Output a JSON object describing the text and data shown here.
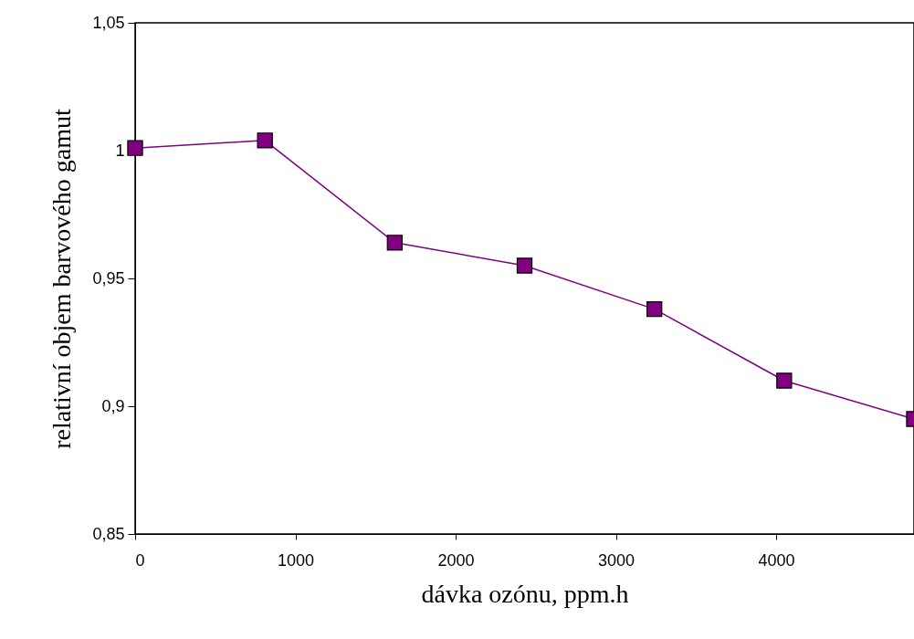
{
  "chart_data": {
    "type": "line",
    "xlabel": "dávka ozónu, ppm.h",
    "ylabel": "relativní objem barvového gamut",
    "x": [
      0,
      810,
      1620,
      2430,
      3240,
      4050,
      4860
    ],
    "series": [
      {
        "color": "#800080",
        "values": [
          1.001,
          1.004,
          0.964,
          0.955,
          0.938,
          0.91,
          0.895
        ]
      }
    ],
    "xlim": [
      0,
      4860
    ],
    "xticks": [
      0,
      1000,
      2000,
      3000,
      4000
    ],
    "ylim": [
      0.85,
      1.05
    ],
    "yticks": [
      {
        "value": 0.85,
        "label": "0,85"
      },
      {
        "value": 0.9,
        "label": "0,9"
      },
      {
        "value": 0.95,
        "label": "0,95"
      },
      {
        "value": 1,
        "label": "1"
      },
      {
        "value": 1.05,
        "label": "1,05"
      }
    ],
    "grid": false,
    "marker": "square",
    "line_style": "solid"
  }
}
